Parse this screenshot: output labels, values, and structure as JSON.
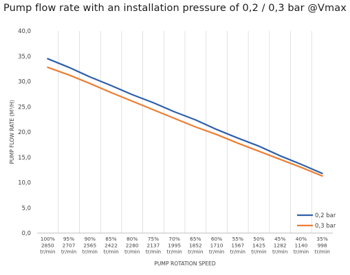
{
  "chart_data": {
    "type": "line",
    "title": "Pump flow rate with an installation pressure of 0,2 / 0,3 bar @Vmax",
    "xlabel": "PUMP ROTATION SPEED",
    "ylabel": "PUMP FLOW RATE (M³/H)",
    "ylim": [
      0,
      40
    ],
    "yticks": [
      "0,0",
      "5,0",
      "10,0",
      "15,0",
      "20,0",
      "25,0",
      "30,0",
      "35,0",
      "40,0"
    ],
    "categories": [
      [
        "100%",
        "2850",
        "tr/min"
      ],
      [
        "95%",
        "2707",
        "tr/min"
      ],
      [
        "90%",
        "2565",
        "tr/min"
      ],
      [
        "85%",
        "2422",
        "tr/min"
      ],
      [
        "80%",
        "2280",
        "tr/min"
      ],
      [
        "75%",
        "2137",
        "tr/min"
      ],
      [
        "70%",
        "1995",
        "tr/min"
      ],
      [
        "65%",
        "1852",
        "tr/min"
      ],
      [
        "60%",
        "1710",
        "tr/min"
      ],
      [
        "55%",
        "1567",
        "tr/min"
      ],
      [
        "50%",
        "1425",
        "tr/min"
      ],
      [
        "45%",
        "1282",
        "tr/min"
      ],
      [
        "40%",
        "1140",
        "tr/min"
      ],
      [
        "35%",
        "998",
        "tr/min"
      ]
    ],
    "series": [
      {
        "name": "0,2 bar",
        "color": "#2e5faa",
        "values": [
          34.5,
          32.8,
          30.9,
          29.2,
          27.4,
          25.8,
          24.0,
          22.4,
          20.5,
          18.8,
          17.2,
          15.3,
          13.6,
          11.8
        ]
      },
      {
        "name": "0,3 bar",
        "color": "#ed7d31",
        "values": [
          32.8,
          31.3,
          29.6,
          27.8,
          26.1,
          24.4,
          22.7,
          21.0,
          19.5,
          17.8,
          16.2,
          14.6,
          13.0,
          11.3
        ]
      }
    ],
    "grid": "vertical",
    "legend": "bottom-right"
  }
}
